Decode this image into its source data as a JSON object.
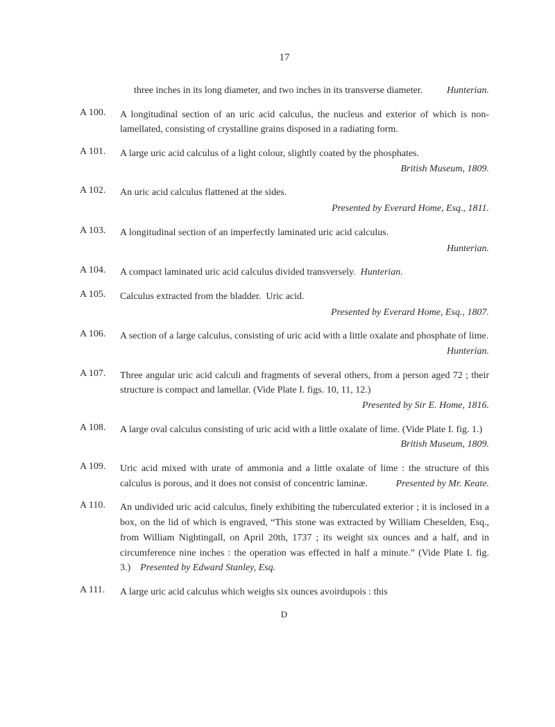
{
  "page_number": "17",
  "continuation": {
    "text_part1": "three inches in its long diameter, and two inches in its transverse diameter.",
    "attribution": "Hunterian."
  },
  "entries": [
    {
      "label": "A 100.",
      "text": "A longitudinal section of an uric acid calculus, the nucleus and exterior of which is non-lamellated, consisting of crystalline grains disposed in a radiating form.",
      "attribution": ""
    },
    {
      "label": "A 101.",
      "text": "A large uric acid calculus of a light colour, slightly coated by the phosphates.",
      "attribution": "British Museum, 1809."
    },
    {
      "label": "A 102.",
      "text": "An uric acid calculus flattened at the sides.",
      "attribution": "Presented by Everard Home, Esq., 1811."
    },
    {
      "label": "A 103.",
      "text": "A longitudinal section of an imperfectly laminated uric acid calculus.",
      "attribution": "Hunterian."
    },
    {
      "label": "A 104.",
      "text": "A compact laminated uric acid calculus divided transversely.",
      "attribution_inline": "Hunterian."
    },
    {
      "label": "A 105.",
      "text": "Calculus extracted from the bladder.  Uric acid.",
      "attribution": "Presented by Everard Home, Esq., 1807."
    },
    {
      "label": "A 106.",
      "text": "A section of a large calculus, consisting of uric acid with a little oxalate and phosphate of lime.",
      "attribution_inline": "Hunterian."
    },
    {
      "label": "A 107.",
      "text_part1": "Three angular uric acid calculi and fragments of several others, from a person aged 72 ; their structure is compact and lamellar. (Vide Plate I. figs. 10, 11, 12.)",
      "attribution_inline": "Presented by Sir E. Home, 1816."
    },
    {
      "label": "A 108.",
      "text": "A large oval calculus consisting of uric acid with a little oxalate of lime. (Vide Plate I. fig. 1.)",
      "attribution_inline": "British Museum, 1809."
    },
    {
      "label": "A 109.",
      "text": "Uric acid mixed with urate of ammonia and a little oxalate of lime : the structure of this calculus is porous, and it does not consist of concentric laminæ.",
      "attribution_inline": "Presented by Mr. Keate."
    },
    {
      "label": "A 110.",
      "text": "An undivided uric acid calculus, finely exhibiting the tuberculated exterior ; it is inclosed in a box, on the lid of which is engraved, “This stone was extracted by William Cheselden, Esq., from William Nightingall, on April 20th, 1737 ; its weight six ounces and a half, and in circumference nine inches : the operation was effected in half a minute.” (Vide Plate I. fig. 3.)",
      "attribution_inline": "Presented by Edward Stanley, Esq."
    },
    {
      "label": "A 111.",
      "text": "A large uric acid calculus which weighs six ounces avoirdupois : this",
      "attribution": ""
    }
  ],
  "footer_mark": "D"
}
